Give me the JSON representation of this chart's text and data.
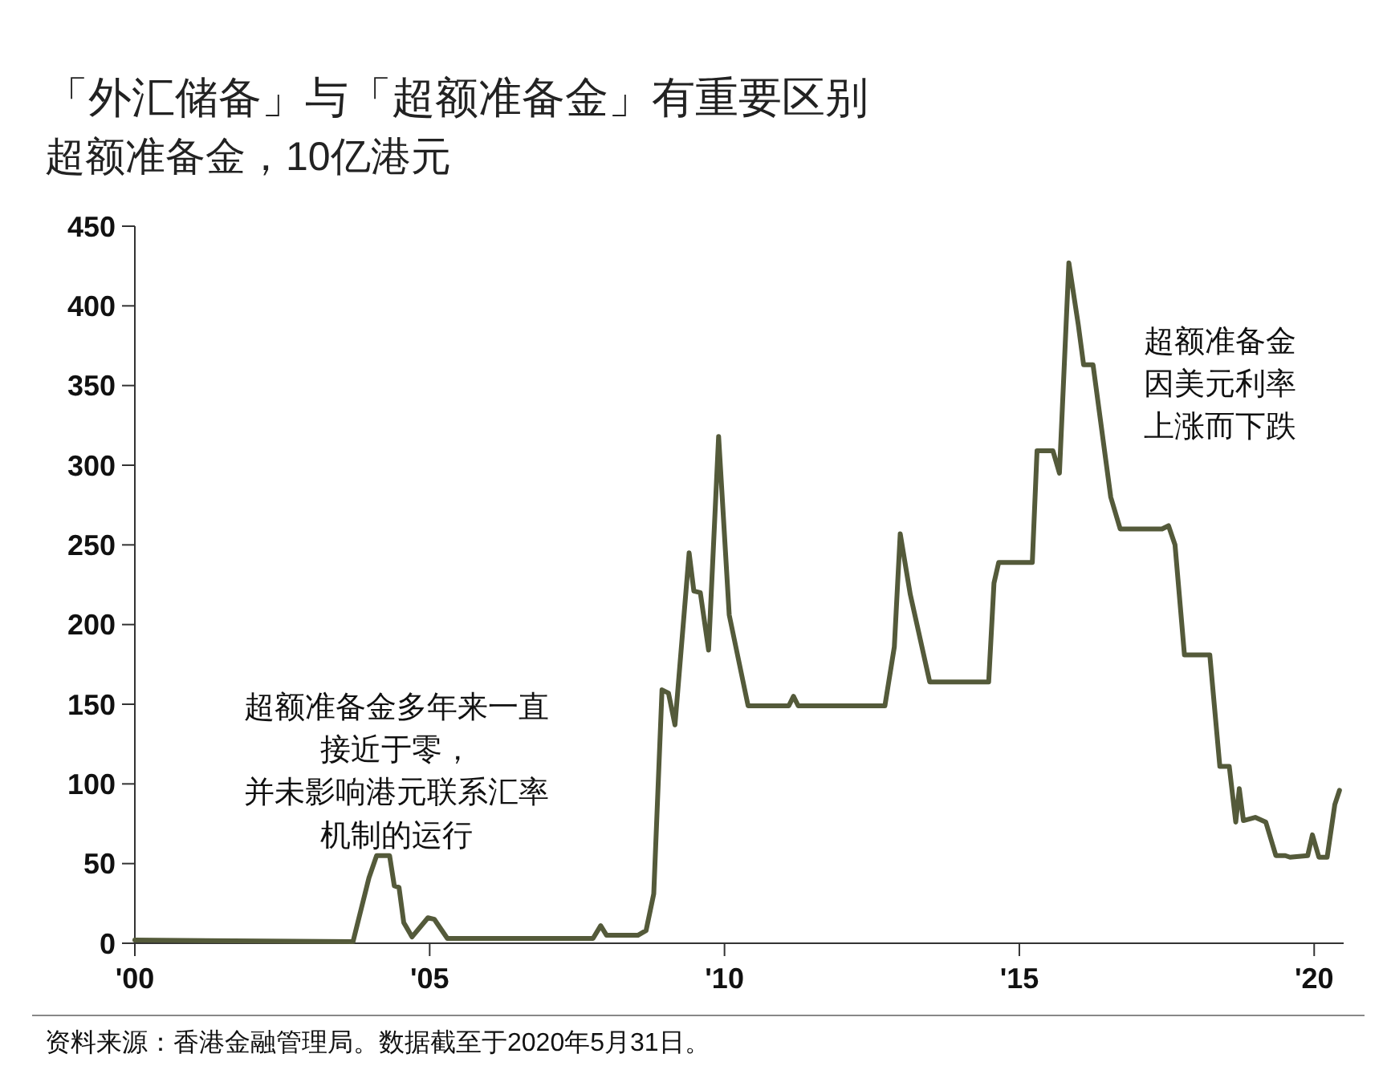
{
  "chart_data": {
    "type": "line",
    "title": "「外汇储备」与「超额准备金」有重要区别",
    "subtitle": "超额准备金，10亿港元",
    "x": [
      2000,
      2003.7,
      2003.97,
      2004.1,
      2004.32,
      2004.4,
      2004.48,
      2004.56,
      2004.7,
      2004.97,
      2005.08,
      2005.3,
      2007.77,
      2007.9,
      2008.0,
      2008.53,
      2008.67,
      2008.8,
      2008.94,
      2009.05,
      2009.16,
      2009.4,
      2009.48,
      2009.59,
      2009.73,
      2009.9,
      2010.08,
      2010.4,
      2011.09,
      2011.17,
      2011.25,
      2012.72,
      2012.88,
      2012.98,
      2013.15,
      2013.48,
      2014.48,
      2014.57,
      2014.65,
      2015.22,
      2015.3,
      2015.57,
      2015.68,
      2015.84,
      2016.0,
      2016.09,
      2016.25,
      2016.55,
      2016.71,
      2017.42,
      2017.53,
      2017.64,
      2017.8,
      2018.23,
      2018.4,
      2018.56,
      2018.67,
      2018.73,
      2018.8,
      2019.0,
      2019.18,
      2019.35,
      2019.51,
      2019.59,
      2019.89,
      2019.97,
      2020.08,
      2020.22,
      2020.35,
      2020.43
    ],
    "series": [
      {
        "color": "#545a3a",
        "values": [
          2,
          1,
          41,
          55,
          55,
          36,
          35,
          13,
          4,
          16,
          15,
          3,
          3,
          11,
          5,
          5,
          8,
          31,
          159,
          157,
          137,
          245,
          221,
          220,
          184,
          318,
          206,
          149,
          149,
          155,
          149,
          149,
          186,
          257,
          219,
          164,
          164,
          226,
          239,
          239,
          309,
          309,
          295,
          427,
          388,
          363,
          363,
          280,
          260,
          260,
          262,
          250,
          181,
          181,
          111,
          111,
          76,
          97,
          77,
          79,
          76,
          55,
          55,
          54,
          55,
          68,
          54,
          54,
          87,
          96
        ]
      }
    ],
    "xlim": [
      2000,
      2020.5
    ],
    "xticks": [
      {
        "value": 2000,
        "label": "'00"
      },
      {
        "value": 2005,
        "label": "'05"
      },
      {
        "value": 2010,
        "label": "'10"
      },
      {
        "value": 2015,
        "label": "'15"
      },
      {
        "value": 2020,
        "label": "'20"
      }
    ],
    "ylim": [
      0,
      450
    ],
    "yticks": [
      0,
      50,
      100,
      150,
      200,
      250,
      300,
      350,
      400,
      450
    ],
    "grid": false,
    "marker": "none",
    "line_style": "solid",
    "annotations": [
      "超额准备金多年来一直接近于零，并未影响港元联系汇率机制的运行",
      "超额准备金因美元利率上涨而下跌",
      "资料来源：香港金融管理局。数据截至于2020年5月31日。"
    ]
  }
}
